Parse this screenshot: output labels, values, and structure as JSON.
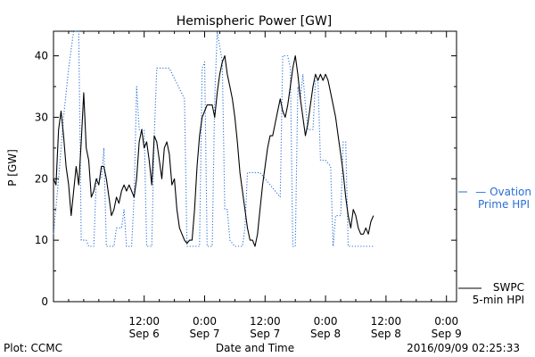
{
  "chart_data": {
    "type": "line",
    "title": "Hemispheric Power [GW]",
    "xlabel": "Date and Time",
    "ylabel": "P [GW]",
    "ylim": [
      0,
      44
    ],
    "xlim": [
      0,
      80
    ],
    "x_unit": "hours since 2016-09-05 18:00 UT",
    "grid": false,
    "yticks": [
      0,
      10,
      20,
      30,
      40
    ],
    "xticks": [
      {
        "pos": 18,
        "line1": "12:00",
        "line2": "Sep 6"
      },
      {
        "pos": 30,
        "line1": "0:00",
        "line2": "Sep 7"
      },
      {
        "pos": 42,
        "line1": "12:00",
        "line2": "Sep 7"
      },
      {
        "pos": 54,
        "line1": "0:00",
        "line2": "Sep 8"
      },
      {
        "pos": 66,
        "line1": "12:00",
        "line2": "Sep 8"
      },
      {
        "pos": 78,
        "line1": "0:00",
        "line2": "Sep 9"
      }
    ],
    "series": [
      {
        "name": "SWPC 5-min HPI",
        "color": "#000000",
        "style": "solid",
        "points": [
          [
            0,
            20
          ],
          [
            0.5,
            19
          ],
          [
            1,
            28
          ],
          [
            1.5,
            31
          ],
          [
            2,
            27
          ],
          [
            2.5,
            22
          ],
          [
            3,
            19
          ],
          [
            3.5,
            14
          ],
          [
            4,
            18
          ],
          [
            4.5,
            22
          ],
          [
            5,
            19
          ],
          [
            5.5,
            26
          ],
          [
            6,
            34
          ],
          [
            6.5,
            25
          ],
          [
            7,
            23
          ],
          [
            7.5,
            17
          ],
          [
            8,
            18
          ],
          [
            8.5,
            20
          ],
          [
            9,
            19
          ],
          [
            9.5,
            22
          ],
          [
            10,
            22
          ],
          [
            10.5,
            20
          ],
          [
            11,
            17
          ],
          [
            11.5,
            14
          ],
          [
            12,
            15
          ],
          [
            12.5,
            17
          ],
          [
            13,
            16
          ],
          [
            13.5,
            18
          ],
          [
            14,
            19
          ],
          [
            14.5,
            18
          ],
          [
            15,
            19
          ],
          [
            15.5,
            18
          ],
          [
            16,
            17
          ],
          [
            16.5,
            20
          ],
          [
            17,
            26
          ],
          [
            17.5,
            28
          ],
          [
            18,
            25
          ],
          [
            18.5,
            26
          ],
          [
            19,
            23
          ],
          [
            19.5,
            19
          ],
          [
            20,
            27
          ],
          [
            20.5,
            26
          ],
          [
            21,
            23
          ],
          [
            21.5,
            20
          ],
          [
            22,
            25
          ],
          [
            22.5,
            26
          ],
          [
            23,
            24
          ],
          [
            23.5,
            19
          ],
          [
            24,
            20
          ],
          [
            24.5,
            15
          ],
          [
            25,
            12
          ],
          [
            25.5,
            11
          ],
          [
            26,
            10
          ],
          [
            26.5,
            9.5
          ],
          [
            27,
            10
          ],
          [
            27.5,
            10
          ],
          [
            28,
            15
          ],
          [
            28.5,
            22
          ],
          [
            29,
            27
          ],
          [
            29.5,
            30
          ],
          [
            30,
            31
          ],
          [
            30.5,
            32
          ],
          [
            31,
            32
          ],
          [
            31.5,
            32
          ],
          [
            32,
            30
          ],
          [
            32.5,
            34
          ],
          [
            33,
            37
          ],
          [
            33.5,
            39
          ],
          [
            34,
            40
          ],
          [
            34.5,
            37
          ],
          [
            35,
            35
          ],
          [
            35.5,
            33
          ],
          [
            36,
            30
          ],
          [
            36.5,
            26
          ],
          [
            37,
            21
          ],
          [
            37.5,
            18
          ],
          [
            38,
            15
          ],
          [
            38.5,
            12
          ],
          [
            39,
            10
          ],
          [
            39.5,
            10
          ],
          [
            40,
            9
          ],
          [
            40.5,
            11
          ],
          [
            41,
            15
          ],
          [
            41.5,
            19
          ],
          [
            42,
            22
          ],
          [
            42.5,
            25
          ],
          [
            43,
            27
          ],
          [
            43.5,
            27
          ],
          [
            44,
            29
          ],
          [
            44.5,
            31
          ],
          [
            45,
            33
          ],
          [
            45.5,
            31
          ],
          [
            46,
            30
          ],
          [
            46.5,
            32
          ],
          [
            47,
            35
          ],
          [
            47.5,
            38
          ],
          [
            48,
            40
          ],
          [
            48.5,
            37
          ],
          [
            49,
            33
          ],
          [
            49.5,
            30
          ],
          [
            50,
            27
          ],
          [
            50.5,
            29
          ],
          [
            51,
            32
          ],
          [
            51.5,
            35
          ],
          [
            52,
            37
          ],
          [
            52.5,
            36
          ],
          [
            53,
            37
          ],
          [
            53.5,
            36
          ],
          [
            54,
            37
          ],
          [
            54.5,
            36
          ],
          [
            55,
            34
          ],
          [
            55.5,
            32
          ],
          [
            56,
            30
          ],
          [
            56.5,
            27
          ],
          [
            57,
            24
          ],
          [
            57.5,
            21
          ],
          [
            58,
            17
          ],
          [
            58.5,
            14
          ],
          [
            59,
            12
          ],
          [
            59.5,
            15
          ],
          [
            60,
            14
          ],
          [
            60.5,
            12
          ],
          [
            61,
            11
          ],
          [
            61.5,
            11
          ],
          [
            62,
            12
          ],
          [
            62.5,
            11
          ],
          [
            63,
            13
          ],
          [
            63.5,
            14
          ]
        ]
      },
      {
        "name": "Ovation Prime HPI",
        "color": "#2a6fd6",
        "style": "dotted",
        "points": [
          [
            0,
            11
          ],
          [
            1,
            20
          ],
          [
            2,
            30
          ],
          [
            3,
            38
          ],
          [
            4,
            44
          ],
          [
            5,
            44
          ],
          [
            5.5,
            10
          ],
          [
            6.5,
            10
          ],
          [
            7,
            9
          ],
          [
            8,
            9
          ],
          [
            8.5,
            20
          ],
          [
            9.5,
            20
          ],
          [
            10,
            25
          ],
          [
            10.5,
            9
          ],
          [
            12,
            9
          ],
          [
            12.5,
            12
          ],
          [
            13.5,
            12
          ],
          [
            14,
            15
          ],
          [
            14.5,
            9
          ],
          [
            15.5,
            9
          ],
          [
            16,
            17
          ],
          [
            16.5,
            35
          ],
          [
            17,
            28
          ],
          [
            18,
            28
          ],
          [
            18.5,
            9
          ],
          [
            19.5,
            9
          ],
          [
            20,
            27
          ],
          [
            20.5,
            38
          ],
          [
            23,
            38
          ],
          [
            26,
            33
          ],
          [
            26.5,
            9
          ],
          [
            29,
            9
          ],
          [
            29.5,
            38
          ],
          [
            30,
            39
          ],
          [
            30.5,
            9
          ],
          [
            31.5,
            9
          ],
          [
            32,
            33
          ],
          [
            32.5,
            44
          ],
          [
            33.5,
            39
          ],
          [
            34,
            15
          ],
          [
            34.5,
            15
          ],
          [
            35,
            10
          ],
          [
            36,
            9
          ],
          [
            37.5,
            9
          ],
          [
            38,
            12
          ],
          [
            38.5,
            21
          ],
          [
            41,
            21
          ],
          [
            45,
            17
          ],
          [
            45.5,
            40
          ],
          [
            46,
            40
          ],
          [
            46.5,
            40
          ],
          [
            47,
            38
          ],
          [
            47.5,
            9
          ],
          [
            48,
            9
          ],
          [
            48.5,
            35
          ],
          [
            49,
            33
          ],
          [
            49.5,
            37
          ],
          [
            50,
            32
          ],
          [
            50.5,
            28
          ],
          [
            51,
            28
          ],
          [
            51.5,
            28
          ],
          [
            52,
            36
          ],
          [
            52.5,
            36
          ],
          [
            53,
            23
          ],
          [
            54,
            23
          ],
          [
            55,
            22
          ],
          [
            55.5,
            9
          ],
          [
            56,
            14
          ],
          [
            57,
            14
          ],
          [
            57.5,
            26
          ],
          [
            58,
            26
          ],
          [
            58.5,
            9
          ],
          [
            63.5,
            9
          ]
        ]
      }
    ],
    "legend": {
      "placement": "right",
      "entries": [
        {
          "series": "Ovation Prime HPI",
          "line1": "— Ovation",
          "line2": "Prime HPI",
          "color": "#2a6fd6"
        },
        {
          "series": "SWPC 5-min HPI",
          "line1": "SWPC",
          "line2": "5-min HPI",
          "color": "#000000"
        }
      ]
    }
  },
  "footer": {
    "left": "Plot: CCMC",
    "center": "Date and Time",
    "right": "2016/09/09 02:25:33"
  }
}
